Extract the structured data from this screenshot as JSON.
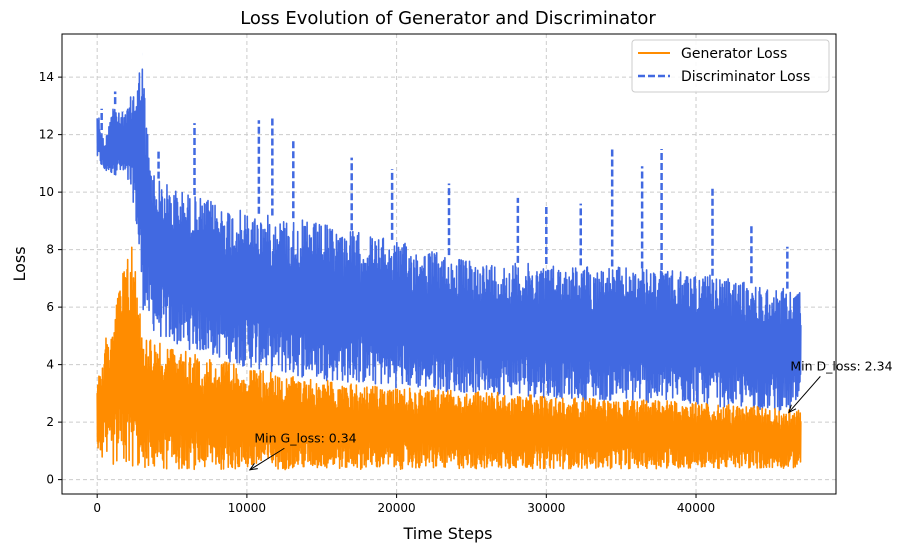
{
  "chart_data": {
    "type": "line",
    "title": "Loss Evolution of Generator and Discriminator",
    "xlabel": "Time Steps",
    "ylabel": "Loss",
    "xlim": [
      -2350,
      49350
    ],
    "ylim": [
      -0.5,
      15.5
    ],
    "xticks": [
      0,
      10000,
      20000,
      30000,
      40000
    ],
    "xtick_labels": [
      "0",
      "10000",
      "20000",
      "30000",
      "40000"
    ],
    "yticks": [
      0,
      2,
      4,
      6,
      8,
      10,
      12,
      14
    ],
    "ytick_labels": [
      "0",
      "2",
      "4",
      "6",
      "8",
      "10",
      "12",
      "14"
    ],
    "grid": true,
    "legend_position": "top-right",
    "series": [
      {
        "name": "Generator Loss",
        "color": "#ff8c00",
        "line_style": "solid",
        "x": [
          0,
          500,
          1000,
          1500,
          2000,
          2300,
          2600,
          3000,
          4000,
          5000,
          7000,
          10000,
          13000,
          16000,
          20000,
          25000,
          30000,
          35000,
          40000,
          45000,
          47000
        ],
        "upper": [
          3.4,
          4.8,
          5.5,
          6.9,
          7.8,
          8.6,
          7.2,
          5.3,
          4.8,
          4.6,
          4.3,
          3.9,
          3.6,
          3.4,
          3.2,
          3.1,
          2.9,
          2.8,
          2.7,
          2.5,
          2.4
        ],
        "lower": [
          0.9,
          0.6,
          0.5,
          0.45,
          0.4,
          0.4,
          0.38,
          0.37,
          0.36,
          0.35,
          0.35,
          0.34,
          0.35,
          0.36,
          0.36,
          0.37,
          0.38,
          0.38,
          0.38,
          0.39,
          0.4
        ]
      },
      {
        "name": "Discriminator Loss",
        "color": "#4169e1",
        "line_style": "dashed",
        "x": [
          0,
          500,
          1000,
          1500,
          2000,
          2500,
          3000,
          3500,
          4000,
          5000,
          7000,
          10000,
          13000,
          16000,
          20000,
          25000,
          30000,
          35000,
          40000,
          45000,
          47000
        ],
        "upper": [
          13.0,
          11.6,
          13.3,
          12.7,
          12.9,
          13.8,
          14.8,
          11.3,
          10.5,
          10.2,
          9.8,
          9.3,
          9.1,
          8.8,
          8.3,
          7.6,
          7.5,
          7.4,
          7.2,
          6.7,
          6.6
        ],
        "lower": [
          11.1,
          10.7,
          10.6,
          10.6,
          10.3,
          9.5,
          6.0,
          5.3,
          5.0,
          4.7,
          4.4,
          3.9,
          3.6,
          3.4,
          3.2,
          3.0,
          2.85,
          2.7,
          2.6,
          2.4,
          2.35
        ],
        "spikes": [
          {
            "x": 300,
            "y": 12.9
          },
          {
            "x": 1200,
            "y": 13.5
          },
          {
            "x": 1700,
            "y": 12.8
          },
          {
            "x": 2700,
            "y": 14.2
          },
          {
            "x": 3000,
            "y": 14.8
          },
          {
            "x": 4100,
            "y": 11.5
          },
          {
            "x": 6500,
            "y": 12.4
          },
          {
            "x": 10800,
            "y": 12.5
          },
          {
            "x": 11700,
            "y": 12.6
          },
          {
            "x": 13100,
            "y": 11.8
          },
          {
            "x": 17000,
            "y": 11.2
          },
          {
            "x": 19700,
            "y": 10.8
          },
          {
            "x": 23500,
            "y": 10.3
          },
          {
            "x": 28100,
            "y": 9.8
          },
          {
            "x": 30000,
            "y": 9.5
          },
          {
            "x": 32300,
            "y": 9.6
          },
          {
            "x": 34400,
            "y": 11.5
          },
          {
            "x": 36400,
            "y": 10.9
          },
          {
            "x": 37700,
            "y": 11.5
          },
          {
            "x": 41100,
            "y": 10.2
          },
          {
            "x": 43700,
            "y": 8.9
          },
          {
            "x": 46100,
            "y": 8.1
          }
        ]
      }
    ],
    "annotations": [
      {
        "text": "Min G_loss: 0.34",
        "x": 10200,
        "y": 0.34,
        "text_x": 10500,
        "text_y": 1.3
      },
      {
        "text": "Min D_loss: 2.34",
        "x": 46200,
        "y": 2.34,
        "text_x": 46300,
        "text_y": 3.8
      }
    ]
  }
}
